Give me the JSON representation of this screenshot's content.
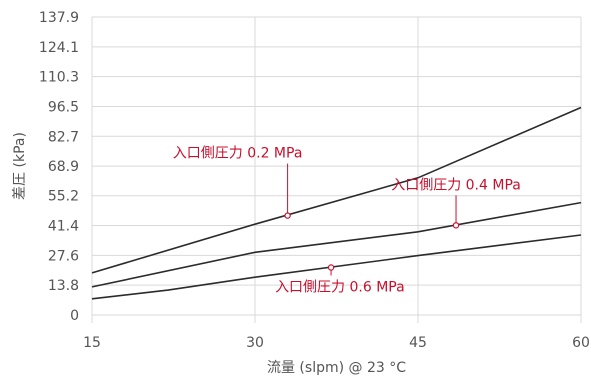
{
  "chart_data": {
    "type": "line",
    "xlabel": "流量 (slpm) @ 23 °C",
    "ylabel": "差圧 (kPa)",
    "xlim": [
      15,
      60
    ],
    "ylim": [
      0,
      137.9
    ],
    "x_ticks": [
      "15",
      "30",
      "45",
      "60"
    ],
    "y_ticks": [
      "0",
      "13.8",
      "27.6",
      "41.4",
      "55.2",
      "68.9",
      "82.7",
      "96.5",
      "110.3",
      "124.1",
      "137.9"
    ],
    "grid": true,
    "series": [
      {
        "name": "入口側圧力 0.2 MPa",
        "x": [
          15,
          30,
          45,
          60
        ],
        "y": [
          19.5,
          42.0,
          63.5,
          96.0
        ]
      },
      {
        "name": "入口側圧力 0.4 MPa",
        "x": [
          15,
          30,
          45,
          60
        ],
        "y": [
          13.0,
          29.0,
          38.5,
          52.0
        ]
      },
      {
        "name": "入口側圧力 0.6 MPa",
        "x": [
          15,
          22,
          30,
          45,
          60
        ],
        "y": [
          7.5,
          11.5,
          17.5,
          27.5,
          37.0
        ]
      }
    ],
    "annotations": [
      {
        "text": "入口側圧力 0.2 MPa",
        "series": 0,
        "x": 33,
        "y": 46.0
      },
      {
        "text": "入口側圧力 0.4 MPa",
        "series": 1,
        "x": 48.5,
        "y": 41.5
      },
      {
        "text": "入口側圧力 0.6 MPa",
        "series": 2,
        "x": 37,
        "y": 22.0
      }
    ],
    "colors": {
      "line": "#2b2b2b",
      "annotation": "#c8102e",
      "grid": "#d9d9d9",
      "axis_text": "#555555"
    }
  }
}
